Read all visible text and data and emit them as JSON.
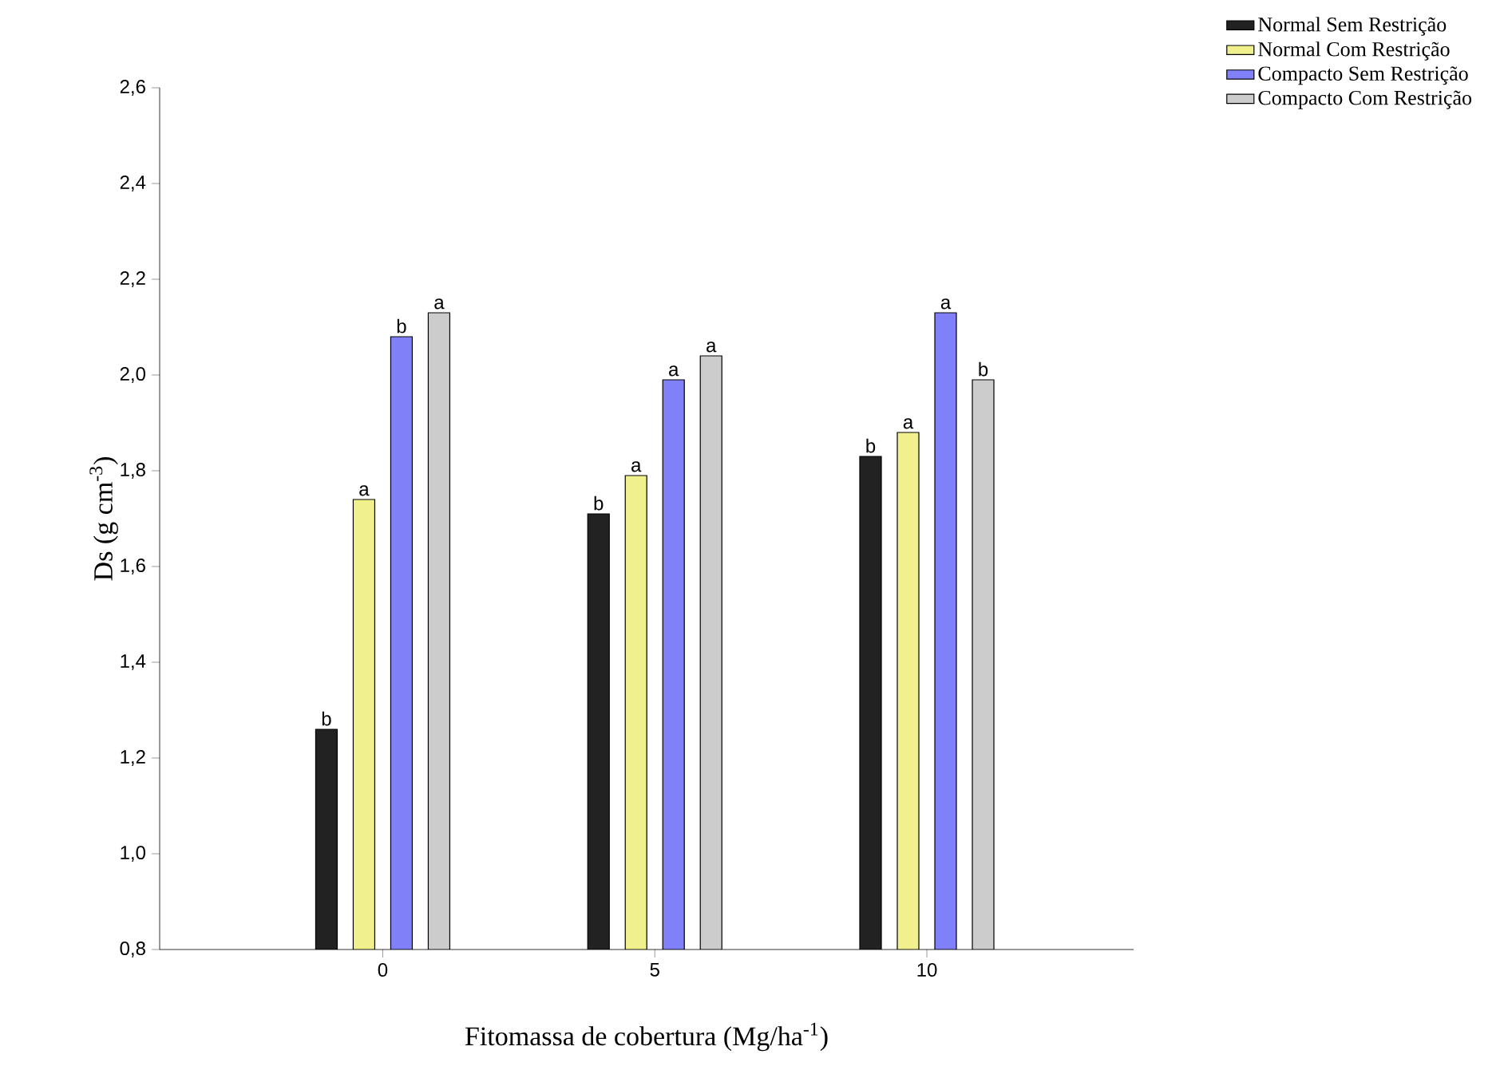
{
  "chart_data": {
    "type": "bar",
    "xlabel": "Fitomassa de cobertura (Mg/ha$^{-1}$)",
    "ylabel": "Ds (g cm$^{-3}$)",
    "categories": [
      "0",
      "5",
      "10"
    ],
    "series": [
      {
        "name": "Normal Sem Restrição",
        "color": "#222222",
        "values": [
          1.26,
          1.71,
          1.83
        ],
        "value_labels": [
          "b",
          "b",
          "b"
        ]
      },
      {
        "name": "Normal Com Restrição",
        "color": "#f0f08c",
        "values": [
          1.74,
          1.79,
          1.88
        ],
        "value_labels": [
          "a",
          "a",
          "a"
        ]
      },
      {
        "name": "Compacto Sem Restrição",
        "color": "#8080f8",
        "values": [
          2.08,
          1.99,
          2.13
        ],
        "value_labels": [
          "b",
          "a",
          "a"
        ]
      },
      {
        "name": "Compacto Com Restrição",
        "color": "#cccccc",
        "values": [
          2.13,
          2.04,
          1.99
        ],
        "value_labels": [
          "a",
          "a",
          "b"
        ]
      }
    ],
    "ylim": [
      0.8,
      2.6
    ],
    "yticks": [
      {
        "value": 0.8,
        "label": "0,8"
      },
      {
        "value": 1.0,
        "label": "1,0"
      },
      {
        "value": 1.2,
        "label": "1,2"
      },
      {
        "value": 1.4,
        "label": "1,4"
      },
      {
        "value": 1.6,
        "label": "1,6"
      },
      {
        "value": 1.8,
        "label": "1,8"
      },
      {
        "value": 2.0,
        "label": "2,0"
      },
      {
        "value": 2.2,
        "label": "2,2"
      },
      {
        "value": 2.4,
        "label": "2,4"
      },
      {
        "value": 2.6,
        "label": "2,6"
      }
    ],
    "legend": "top right"
  }
}
